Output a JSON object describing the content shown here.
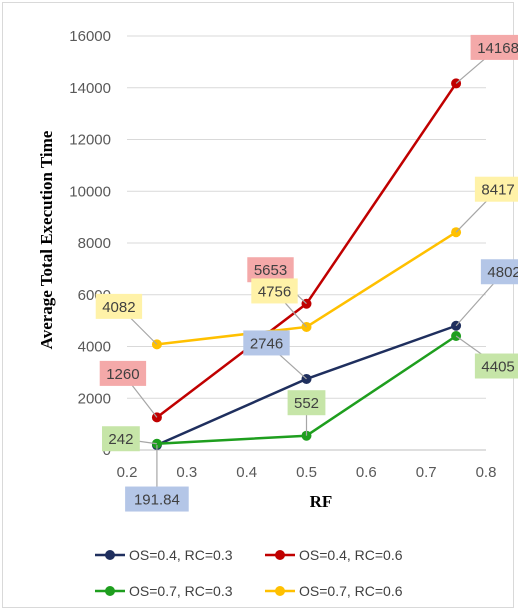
{
  "chart_data": {
    "type": "line",
    "title": "",
    "xlabel": "RF",
    "ylabel": "Average Total Execution Time",
    "xlim": [
      0.2,
      0.8
    ],
    "ylim": [
      0,
      16000
    ],
    "xticks": [
      "0.2",
      "0.3",
      "0.4",
      "0.5",
      "0.6",
      "0.7",
      "0.8"
    ],
    "yticks": [
      "0",
      "2000",
      "4000",
      "6000",
      "8000",
      "10000",
      "12000",
      "14000",
      "16000"
    ],
    "grid": true,
    "legend_position": "bottom",
    "x": [
      0.25,
      0.5,
      0.75
    ],
    "series": [
      {
        "name": "OS=0.4, RC=0.3",
        "color": "#1f2f5e",
        "label_bg": "#b4c6e7",
        "values": [
          191.84,
          2746,
          4802
        ],
        "labels": [
          "191.84",
          "2746",
          "4802"
        ]
      },
      {
        "name": "OS=0.4, RC=0.6",
        "color": "#c00000",
        "label_bg": "#f4a9a9",
        "values": [
          1260,
          5653,
          14168
        ],
        "labels": [
          "1260",
          "5653",
          "14168"
        ]
      },
      {
        "name": "OS=0.7, RC=0.3",
        "color": "#1e9e1e",
        "label_bg": "#c6e5a8",
        "values": [
          242,
          552,
          4405
        ],
        "labels": [
          "242",
          "552",
          "4405"
        ]
      },
      {
        "name": "OS=0.7, RC=0.6",
        "color": "#ffc000",
        "label_bg": "#fff2a8",
        "values": [
          4082,
          4756,
          8417
        ],
        "labels": [
          "4082",
          "4756",
          "8417"
        ]
      }
    ]
  }
}
